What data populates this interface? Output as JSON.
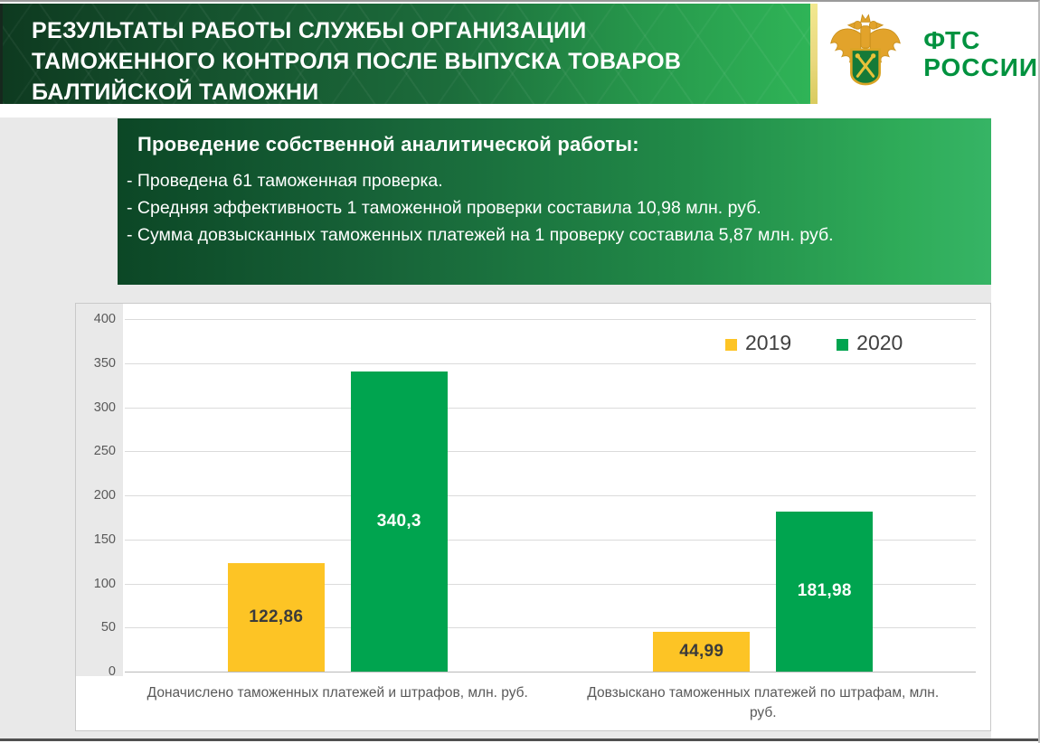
{
  "slide": {
    "header": {
      "title_lines": [
        "РЕЗУЛЬТАТЫ РАБОТЫ СЛУЖБЫ ОРГАНИЗАЦИИ",
        "ТАМОЖЕННОГО КОНТРОЛЯ ПОСЛЕ ВЫПУСКА ТОВАРОВ",
        "БАЛТИЙСКОЙ ТАМОЖНИ"
      ],
      "logo": {
        "line1": "ФТС",
        "line2": "РОССИИ",
        "emblem": "fts-double-headed-eagle-with-green-shield"
      }
    },
    "info_box": {
      "heading": "Проведение собственной аналитической работы:",
      "bullets": [
        "- Проведена 61 таможенная проверка.",
        "- Средняя эффективность 1 таможенной проверки составила 10,98 млн. руб.",
        "- Сумма довзысканных таможенных платежей на 1 проверку составила 5,87 млн. руб."
      ]
    },
    "colors": {
      "header_green_dark": "#0e3a20",
      "header_green_bright": "#2fb457",
      "accent_stripe_yellow": "#ead980",
      "logo_green": "#00923f",
      "panel_gray": "#e9e9e9"
    }
  },
  "chart_data": {
    "type": "bar",
    "categories": [
      "Доначислено таможенных платежей и штрафов, млн. руб.",
      "Довзыскано таможенных платежей по штрафам, млн. руб."
    ],
    "category_label_lines": [
      [
        "Доначислено таможенных платежей и штрафов, млн. руб."
      ],
      [
        "Довзыскано таможенных платежей по штрафам, млн.",
        "руб."
      ]
    ],
    "series": [
      {
        "name": "2019",
        "color": "#fdc425",
        "label_color": "#3b3b3b",
        "values": [
          122.86,
          44.99
        ],
        "labels": [
          "122,86",
          "44,99"
        ]
      },
      {
        "name": "2020",
        "color": "#00a44f",
        "label_color": "#ffffff",
        "values": [
          340.3,
          181.98
        ],
        "labels": [
          "340,3",
          "181,98"
        ]
      }
    ],
    "title": "",
    "xlabel": "",
    "ylabel": "",
    "ylim": [
      0,
      400
    ],
    "ytick_step": 50,
    "grid": true,
    "legend_position": "top-right"
  }
}
